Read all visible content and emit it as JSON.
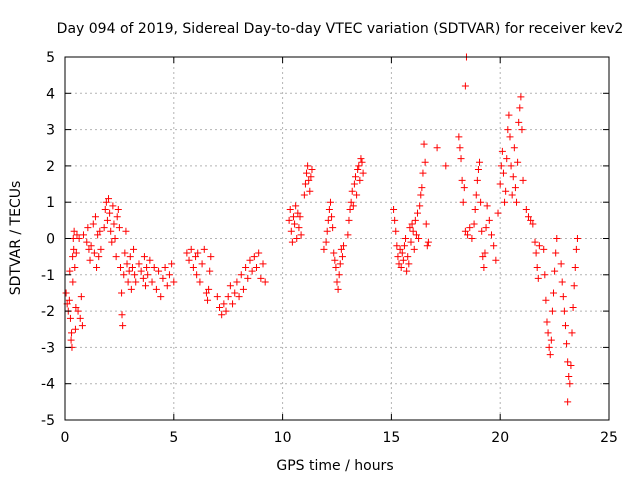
{
  "chart_data": {
    "type": "scatter",
    "title": "Day 094 of 2019, Sidereal Day-to-day VTEC variation (SDTVAR) for receiver kev2",
    "xlabel": "GPS time / hours",
    "ylabel": "SDTVAR / TECUs",
    "xlim": [
      0,
      25
    ],
    "ylim": [
      -5,
      5
    ],
    "xticks": [
      0,
      5,
      10,
      15,
      20,
      25
    ],
    "yticks": [
      -5,
      -4,
      -3,
      -2,
      -1,
      0,
      1,
      2,
      3,
      4,
      5
    ],
    "xtick_labels": [
      "0",
      "5",
      "10",
      "15",
      "20",
      "25"
    ],
    "ytick_labels": [
      "-5",
      "-4",
      "-3",
      "-2",
      "-1",
      "0",
      "1",
      "2",
      "3",
      "4",
      "5"
    ],
    "grid": true,
    "marker": "+",
    "color": "#ff0000",
    "series": [
      {
        "name": "kev2",
        "points": [
          [
            0.05,
            -1.5
          ],
          [
            0.1,
            -1.8
          ],
          [
            0.15,
            -2.0
          ],
          [
            0.2,
            -1.7
          ],
          [
            0.22,
            -0.9
          ],
          [
            0.25,
            -2.2
          ],
          [
            0.28,
            -2.8
          ],
          [
            0.3,
            -2.6
          ],
          [
            0.32,
            -3.0
          ],
          [
            0.35,
            -0.5
          ],
          [
            0.36,
            -1.2
          ],
          [
            0.38,
            0.0
          ],
          [
            0.4,
            -0.3
          ],
          [
            0.42,
            0.2
          ],
          [
            0.45,
            -0.8
          ],
          [
            0.48,
            -2.5
          ],
          [
            0.5,
            -1.9
          ],
          [
            0.52,
            -0.4
          ],
          [
            0.55,
            0.1
          ],
          [
            0.6,
            -2.0
          ],
          [
            0.65,
            0.0
          ],
          [
            0.7,
            -2.2
          ],
          [
            0.75,
            -1.6
          ],
          [
            0.8,
            -2.4
          ],
          [
            0.85,
            0.1
          ],
          [
            1.0,
            -0.1
          ],
          [
            1.05,
            0.3
          ],
          [
            1.1,
            -0.3
          ],
          [
            1.15,
            -0.6
          ],
          [
            1.2,
            -0.2
          ],
          [
            1.3,
            0.4
          ],
          [
            1.35,
            -0.4
          ],
          [
            1.4,
            0.6
          ],
          [
            1.45,
            -0.8
          ],
          [
            1.5,
            0.1
          ],
          [
            1.55,
            -0.5
          ],
          [
            1.6,
            0.2
          ],
          [
            1.65,
            -0.3
          ],
          [
            1.8,
            0.3
          ],
          [
            1.85,
            0.8
          ],
          [
            1.9,
            1.0
          ],
          [
            1.95,
            0.5
          ],
          [
            2.0,
            1.1
          ],
          [
            2.05,
            0.7
          ],
          [
            2.1,
            0.2
          ],
          [
            2.15,
            -0.1
          ],
          [
            2.2,
            0.9
          ],
          [
            2.25,
            0.4
          ],
          [
            2.3,
            0.0
          ],
          [
            2.35,
            -0.5
          ],
          [
            2.4,
            0.6
          ],
          [
            2.45,
            0.8
          ],
          [
            2.5,
            0.3
          ],
          [
            2.55,
            -0.8
          ],
          [
            2.6,
            -1.5
          ],
          [
            2.62,
            -2.1
          ],
          [
            2.65,
            -2.4
          ],
          [
            2.7,
            -1.0
          ],
          [
            2.75,
            -0.4
          ],
          [
            2.8,
            0.2
          ],
          [
            2.85,
            -0.7
          ],
          [
            2.9,
            -1.2
          ],
          [
            2.95,
            -0.9
          ],
          [
            3.0,
            -0.5
          ],
          [
            3.05,
            -1.4
          ],
          [
            3.1,
            -0.8
          ],
          [
            3.15,
            -0.3
          ],
          [
            3.2,
            -1.0
          ],
          [
            3.25,
            -1.2
          ],
          [
            3.4,
            -0.7
          ],
          [
            3.5,
            -0.9
          ],
          [
            3.6,
            -1.1
          ],
          [
            3.65,
            -0.5
          ],
          [
            3.7,
            -1.3
          ],
          [
            3.75,
            -0.8
          ],
          [
            3.8,
            -1.0
          ],
          [
            3.9,
            -0.6
          ],
          [
            4.0,
            -1.2
          ],
          [
            4.1,
            -0.8
          ],
          [
            4.2,
            -1.4
          ],
          [
            4.3,
            -0.9
          ],
          [
            4.4,
            -1.6
          ],
          [
            4.5,
            -1.1
          ],
          [
            4.6,
            -0.8
          ],
          [
            4.7,
            -1.3
          ],
          [
            4.8,
            -1.0
          ],
          [
            4.9,
            -0.7
          ],
          [
            5.0,
            -1.2
          ],
          [
            5.6,
            -0.4
          ],
          [
            5.7,
            -0.6
          ],
          [
            5.8,
            -0.3
          ],
          [
            5.9,
            -0.8
          ],
          [
            6.0,
            -0.5
          ],
          [
            6.05,
            -1.0
          ],
          [
            6.1,
            -0.4
          ],
          [
            6.2,
            -1.2
          ],
          [
            6.3,
            -0.7
          ],
          [
            6.4,
            -0.3
          ],
          [
            6.5,
            -1.5
          ],
          [
            6.55,
            -1.7
          ],
          [
            6.6,
            -1.4
          ],
          [
            6.65,
            -0.9
          ],
          [
            6.7,
            -0.5
          ],
          [
            7.0,
            -1.6
          ],
          [
            7.1,
            -1.9
          ],
          [
            7.2,
            -2.1
          ],
          [
            7.3,
            -1.8
          ],
          [
            7.4,
            -2.0
          ],
          [
            7.5,
            -1.6
          ],
          [
            7.6,
            -1.3
          ],
          [
            7.7,
            -1.8
          ],
          [
            7.8,
            -1.5
          ],
          [
            7.9,
            -1.2
          ],
          [
            8.0,
            -1.6
          ],
          [
            8.1,
            -1.0
          ],
          [
            8.2,
            -1.4
          ],
          [
            8.3,
            -0.8
          ],
          [
            8.4,
            -1.1
          ],
          [
            8.5,
            -0.6
          ],
          [
            8.6,
            -0.9
          ],
          [
            8.7,
            -0.5
          ],
          [
            8.8,
            -0.8
          ],
          [
            8.9,
            -0.4
          ],
          [
            9.0,
            -1.1
          ],
          [
            9.1,
            -0.7
          ],
          [
            9.2,
            -1.2
          ],
          [
            10.3,
            0.5
          ],
          [
            10.35,
            0.8
          ],
          [
            10.4,
            0.2
          ],
          [
            10.45,
            -0.1
          ],
          [
            10.5,
            0.6
          ],
          [
            10.55,
            0.4
          ],
          [
            10.6,
            0.9
          ],
          [
            10.65,
            0.0
          ],
          [
            10.7,
            0.7
          ],
          [
            10.75,
            0.3
          ],
          [
            10.8,
            0.6
          ],
          [
            10.85,
            0.1
          ],
          [
            11.0,
            1.2
          ],
          [
            11.05,
            1.5
          ],
          [
            11.1,
            1.8
          ],
          [
            11.15,
            2.0
          ],
          [
            11.2,
            1.6
          ],
          [
            11.25,
            1.3
          ],
          [
            11.3,
            1.7
          ],
          [
            11.35,
            1.9
          ],
          [
            11.9,
            -0.3
          ],
          [
            12.0,
            -0.1
          ],
          [
            12.05,
            0.2
          ],
          [
            12.1,
            0.5
          ],
          [
            12.15,
            0.8
          ],
          [
            12.2,
            1.0
          ],
          [
            12.25,
            0.6
          ],
          [
            12.3,
            0.3
          ],
          [
            12.35,
            -0.4
          ],
          [
            12.4,
            -0.6
          ],
          [
            12.45,
            -0.8
          ],
          [
            12.5,
            -1.2
          ],
          [
            12.55,
            -1.4
          ],
          [
            12.6,
            -1.0
          ],
          [
            12.65,
            -0.7
          ],
          [
            12.7,
            -0.3
          ],
          [
            12.75,
            -0.5
          ],
          [
            12.8,
            -0.2
          ],
          [
            13.0,
            0.1
          ],
          [
            13.05,
            0.5
          ],
          [
            13.1,
            0.8
          ],
          [
            13.15,
            1.0
          ],
          [
            13.2,
            1.3
          ],
          [
            13.25,
            0.9
          ],
          [
            13.3,
            1.5
          ],
          [
            13.35,
            1.7
          ],
          [
            13.4,
            1.2
          ],
          [
            13.45,
            1.9
          ],
          [
            13.5,
            2.0
          ],
          [
            13.55,
            1.6
          ],
          [
            13.6,
            2.2
          ],
          [
            13.65,
            2.1
          ],
          [
            13.7,
            1.8
          ],
          [
            15.1,
            0.8
          ],
          [
            15.15,
            0.5
          ],
          [
            15.2,
            0.2
          ],
          [
            15.25,
            -0.2
          ],
          [
            15.3,
            -0.5
          ],
          [
            15.35,
            -0.7
          ],
          [
            15.4,
            -0.3
          ],
          [
            15.45,
            -0.8
          ],
          [
            15.5,
            -0.4
          ],
          [
            15.55,
            -0.6
          ],
          [
            15.6,
            -0.2
          ],
          [
            15.65,
            0.0
          ],
          [
            15.7,
            -0.9
          ],
          [
            15.75,
            -0.5
          ],
          [
            15.8,
            -0.7
          ],
          [
            15.85,
            0.3
          ],
          [
            15.9,
            -0.1
          ],
          [
            15.95,
            0.4
          ],
          [
            16.0,
            0.2
          ],
          [
            16.05,
            -0.3
          ],
          [
            16.1,
            0.5
          ],
          [
            16.15,
            0.1
          ],
          [
            16.2,
            0.7
          ],
          [
            16.25,
            0.0
          ],
          [
            16.3,
            0.9
          ],
          [
            16.35,
            1.2
          ],
          [
            16.4,
            1.4
          ],
          [
            16.45,
            1.8
          ],
          [
            16.5,
            2.6
          ],
          [
            16.55,
            2.1
          ],
          [
            16.6,
            0.4
          ],
          [
            16.65,
            -0.2
          ],
          [
            16.7,
            -0.1
          ],
          [
            17.1,
            2.5
          ],
          [
            17.5,
            2.0
          ],
          [
            18.1,
            2.8
          ],
          [
            18.15,
            2.5
          ],
          [
            18.2,
            2.2
          ],
          [
            18.25,
            1.6
          ],
          [
            18.3,
            1.0
          ],
          [
            18.35,
            1.4
          ],
          [
            18.4,
            0.2
          ],
          [
            18.5,
            0.1
          ],
          [
            18.6,
            0.3
          ],
          [
            18.7,
            0.0
          ],
          [
            18.8,
            0.4
          ],
          [
            18.85,
            0.8
          ],
          [
            18.9,
            1.2
          ],
          [
            18.95,
            1.6
          ],
          [
            19.0,
            1.9
          ],
          [
            19.05,
            2.1
          ],
          [
            19.1,
            1.0
          ],
          [
            19.15,
            0.2
          ],
          [
            19.2,
            -0.5
          ],
          [
            19.25,
            -0.8
          ],
          [
            19.3,
            -0.4
          ],
          [
            19.35,
            0.3
          ],
          [
            19.4,
            0.9
          ],
          [
            19.5,
            0.5
          ],
          [
            19.6,
            0.1
          ],
          [
            19.7,
            -0.2
          ],
          [
            19.8,
            -0.6
          ],
          [
            19.9,
            0.7
          ],
          [
            18.4,
            4.2
          ],
          [
            18.45,
            5.0
          ],
          [
            20.0,
            1.5
          ],
          [
            20.05,
            2.0
          ],
          [
            20.1,
            2.4
          ],
          [
            20.15,
            1.8
          ],
          [
            20.2,
            1.0
          ],
          [
            20.25,
            1.3
          ],
          [
            20.3,
            2.2
          ],
          [
            20.35,
            3.0
          ],
          [
            20.4,
            3.4
          ],
          [
            20.45,
            2.8
          ],
          [
            20.5,
            2.0
          ],
          [
            20.55,
            1.2
          ],
          [
            20.6,
            1.7
          ],
          [
            20.65,
            2.5
          ],
          [
            20.7,
            1.4
          ],
          [
            20.75,
            1.0
          ],
          [
            20.8,
            2.1
          ],
          [
            20.85,
            3.2
          ],
          [
            20.9,
            3.6
          ],
          [
            20.95,
            3.9
          ],
          [
            21.0,
            3.0
          ],
          [
            21.05,
            1.6
          ],
          [
            21.2,
            0.8
          ],
          [
            21.3,
            0.6
          ],
          [
            21.4,
            0.5
          ],
          [
            21.5,
            0.4
          ],
          [
            21.6,
            -0.1
          ],
          [
            21.65,
            -0.4
          ],
          [
            21.7,
            -0.8
          ],
          [
            21.75,
            -1.1
          ],
          [
            21.8,
            -0.2
          ],
          [
            22.0,
            -0.3
          ],
          [
            22.05,
            -1.0
          ],
          [
            22.1,
            -1.7
          ],
          [
            22.15,
            -2.3
          ],
          [
            22.2,
            -2.6
          ],
          [
            22.25,
            -3.0
          ],
          [
            22.3,
            -3.2
          ],
          [
            22.35,
            -2.8
          ],
          [
            22.4,
            -2.0
          ],
          [
            22.45,
            -1.5
          ],
          [
            22.5,
            -0.9
          ],
          [
            22.55,
            -0.4
          ],
          [
            22.6,
            0.0
          ],
          [
            22.8,
            -0.7
          ],
          [
            22.85,
            -1.2
          ],
          [
            22.9,
            -1.6
          ],
          [
            22.95,
            -2.0
          ],
          [
            23.0,
            -2.4
          ],
          [
            23.05,
            -2.9
          ],
          [
            23.1,
            -3.4
          ],
          [
            23.15,
            -3.8
          ],
          [
            23.2,
            -4.0
          ],
          [
            23.25,
            -3.5
          ],
          [
            23.3,
            -2.6
          ],
          [
            23.35,
            -1.9
          ],
          [
            23.4,
            -1.3
          ],
          [
            23.45,
            -0.8
          ],
          [
            23.5,
            -0.3
          ],
          [
            23.55,
            0.0
          ],
          [
            23.1,
            -4.5
          ]
        ]
      }
    ]
  }
}
